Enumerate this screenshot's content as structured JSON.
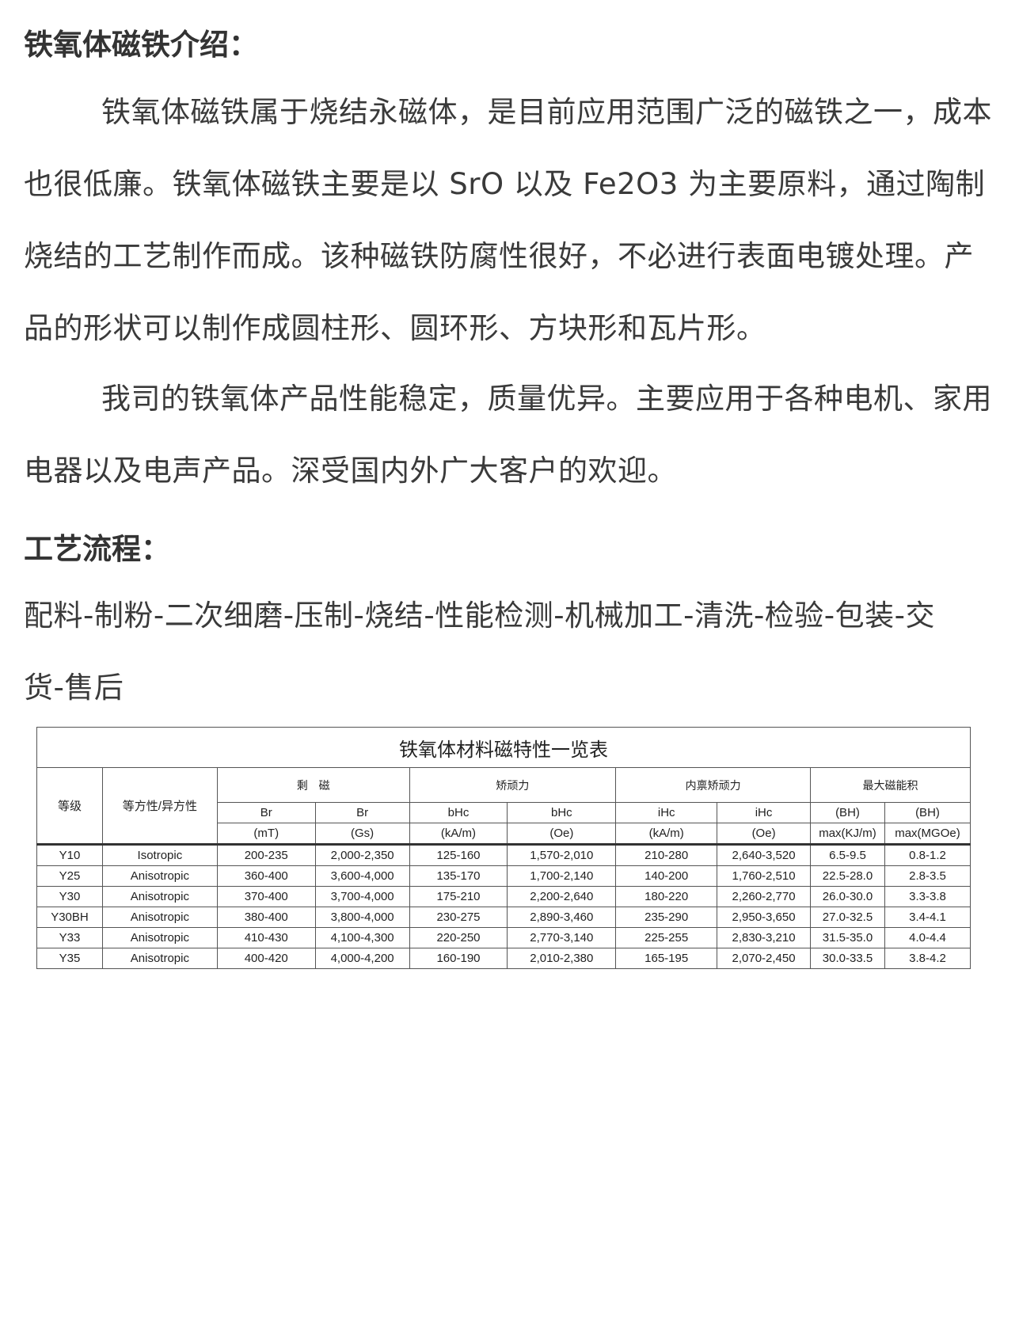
{
  "intro": {
    "heading": "铁氧体磁铁介绍：",
    "para1": "铁氧体磁铁属于烧结永磁体，是目前应用范围广泛的磁铁之一，成本也很低廉。铁氧体磁铁主要是以 SrO 以及 Fe2O3 为主要原料，通过陶制烧结的工艺制作而成。该种磁铁防腐性很好，不必进行表面电镀处理。产品的形状可以制作成圆柱形、圆环形、方块形和瓦片形。",
    "para2": "我司的铁氧体产品性能稳定，质量优异。主要应用于各种电机、家用电器以及电声产品。深受国内外广大客户的欢迎。"
  },
  "process": {
    "heading": "工艺流程：",
    "text": "配料-制粉-二次细磨-压制-烧结-性能检测-机械加工-清洗-检验-包装-交货-售后"
  },
  "table": {
    "title": "铁氧体材料磁特性一览表",
    "col_grade": "等级",
    "col_type": "等方性/异方性",
    "groups": [
      "剩　磁",
      "矫顽力",
      "内禀矫顽力",
      "最大磁能积"
    ],
    "sub1": [
      "Br",
      "Br",
      "bHc",
      "bHc",
      "iHc",
      "iHc",
      "(BH)",
      "(BH)"
    ],
    "sub2": [
      "(mT)",
      "(Gs)",
      "(kA/m)",
      "(Oe)",
      "(kA/m)",
      "(Oe)",
      "max(KJ/m)",
      "max(MGOe)"
    ],
    "rows": [
      [
        "Y10",
        "Isotropic",
        "200-235",
        "2,000-2,350",
        "125-160",
        "1,570-2,010",
        "210-280",
        "2,640-3,520",
        "6.5-9.5",
        "0.8-1.2"
      ],
      [
        "Y25",
        "Anisotropic",
        "360-400",
        "3,600-4,000",
        "135-170",
        "1,700-2,140",
        "140-200",
        "1,760-2,510",
        "22.5-28.0",
        "2.8-3.5"
      ],
      [
        "Y30",
        "Anisotropic",
        "370-400",
        "3,700-4,000",
        "175-210",
        "2,200-2,640",
        "180-220",
        "2,260-2,770",
        "26.0-30.0",
        "3.3-3.8"
      ],
      [
        "Y30BH",
        "Anisotropic",
        "380-400",
        "3,800-4,000",
        "230-275",
        "2,890-3,460",
        "235-290",
        "2,950-3,650",
        "27.0-32.5",
        "3.4-4.1"
      ],
      [
        "Y33",
        "Anisotropic",
        "410-430",
        "4,100-4,300",
        "220-250",
        "2,770-3,140",
        "225-255",
        "2,830-3,210",
        "31.5-35.0",
        "4.0-4.4"
      ],
      [
        "Y35",
        "Anisotropic",
        "400-420",
        "4,000-4,200",
        "160-190",
        "2,010-2,380",
        "165-195",
        "2,070-2,450",
        "30.0-33.5",
        "3.8-4.2"
      ]
    ]
  }
}
